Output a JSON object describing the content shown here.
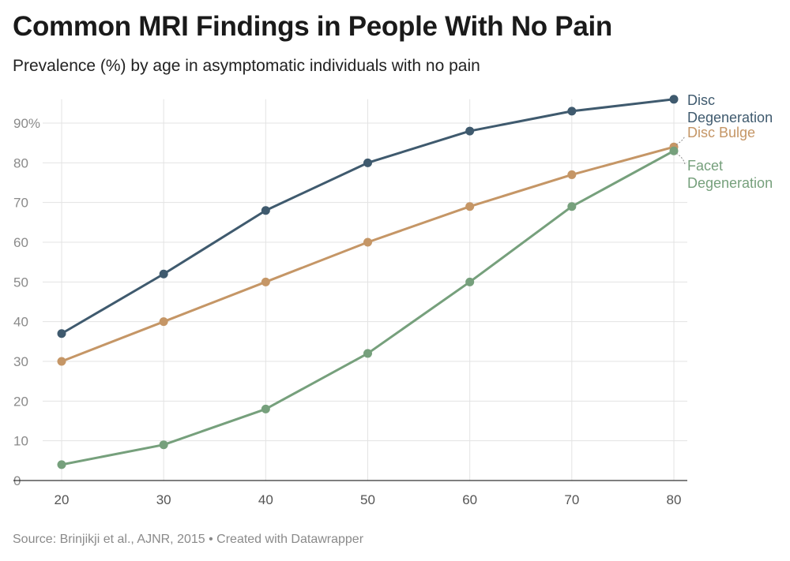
{
  "title": "Common MRI Findings in People With No Pain",
  "subtitle": "Prevalence (%) by age in asymptomatic individuals with no pain",
  "source": "Source: Brinjikji et al., AJNR, 2015 • Created with Datawrapper",
  "chart_data": {
    "type": "line",
    "title": "Common MRI Findings in People With No Pain",
    "subtitle": "Prevalence (%) by age in asymptomatic individuals with no pain",
    "xlabel": "",
    "ylabel": "",
    "x": [
      20,
      30,
      40,
      50,
      60,
      70,
      80
    ],
    "x_tick_labels": [
      "20",
      "30",
      "40",
      "50",
      "60",
      "70",
      "80"
    ],
    "y_tick_labels": [
      "0",
      "10",
      "20",
      "30",
      "40",
      "50",
      "60",
      "70",
      "80",
      "90%"
    ],
    "y_ticks": [
      0,
      10,
      20,
      30,
      40,
      50,
      60,
      70,
      80,
      90
    ],
    "xlim": [
      20,
      80
    ],
    "ylim": [
      0,
      96
    ],
    "grid": true,
    "legend": "direct labels at line ends",
    "series": [
      {
        "name": "Disc Degeneration",
        "label_lines": [
          "Disc",
          "Degeneration"
        ],
        "color": "#3f5a6e",
        "values": [
          37,
          52,
          68,
          80,
          88,
          93,
          96
        ]
      },
      {
        "name": "Disc Bulge",
        "label_lines": [
          "Disc Bulge"
        ],
        "color": "#c59666",
        "values": [
          30,
          40,
          50,
          60,
          69,
          77,
          84
        ]
      },
      {
        "name": "Facet Degeneration",
        "label_lines": [
          "Facet",
          "Degeneration"
        ],
        "color": "#76a07c",
        "values": [
          4,
          9,
          18,
          32,
          50,
          69,
          83
        ]
      }
    ]
  }
}
